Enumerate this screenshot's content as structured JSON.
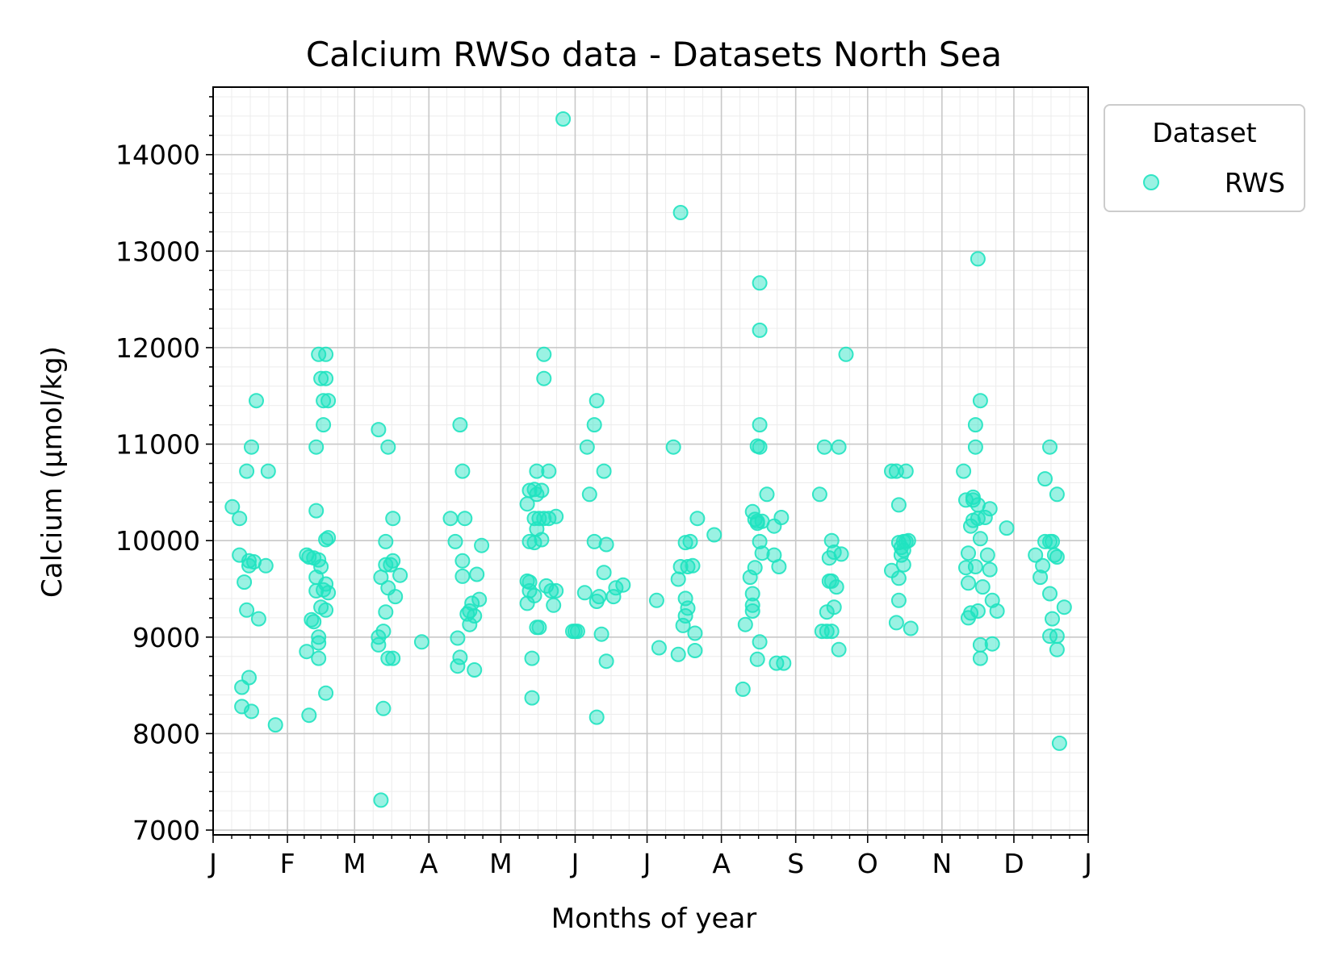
{
  "chart_data": {
    "type": "scatter",
    "title": "Calcium RWSo data - Datasets North Sea",
    "xlabel": "Months of year",
    "ylabel": "Calcium (µmol/kg)",
    "xlim": [
      1,
      366
    ],
    "ylim": [
      6950,
      14700
    ],
    "month_ticks": {
      "labels": [
        "J",
        "F",
        "M",
        "A",
        "M",
        "J",
        "J",
        "A",
        "S",
        "O",
        "N",
        "D",
        "J"
      ],
      "days": [
        1,
        32,
        60,
        91,
        121,
        152,
        182,
        213,
        244,
        274,
        305,
        335,
        366
      ]
    },
    "y_ticks": [
      7000,
      8000,
      9000,
      10000,
      11000,
      12000,
      13000,
      14000
    ],
    "grid": true,
    "legend": {
      "title": "Dataset",
      "entries": [
        "RWS"
      ],
      "placement": "outside-top-right"
    },
    "marker_color": "#20E3C0",
    "series": [
      {
        "name": "RWS",
        "points": [
          [
            9,
            10350
          ],
          [
            12,
            10230
          ],
          [
            12,
            9850
          ],
          [
            13,
            8480
          ],
          [
            13,
            8280
          ],
          [
            14,
            9570
          ],
          [
            15,
            10720
          ],
          [
            15,
            9280
          ],
          [
            16,
            9790
          ],
          [
            16,
            9740
          ],
          [
            16,
            8580
          ],
          [
            17,
            10970
          ],
          [
            17,
            8230
          ],
          [
            18,
            9780
          ],
          [
            19,
            11450
          ],
          [
            20,
            9190
          ],
          [
            23,
            9740
          ],
          [
            24,
            10720
          ],
          [
            27,
            8090
          ],
          [
            40,
            9850
          ],
          [
            40,
            8850
          ],
          [
            41,
            9830
          ],
          [
            41,
            8190
          ],
          [
            42,
            9180
          ],
          [
            43,
            9820
          ],
          [
            43,
            9160
          ],
          [
            44,
            10970
          ],
          [
            44,
            10310
          ],
          [
            44,
            9620
          ],
          [
            44,
            9480
          ],
          [
            45,
            11930
          ],
          [
            45,
            9800
          ],
          [
            45,
            9000
          ],
          [
            45,
            8780
          ],
          [
            45,
            8940
          ],
          [
            46,
            11680
          ],
          [
            46,
            9310
          ],
          [
            46,
            9730
          ],
          [
            47,
            11450
          ],
          [
            47,
            11200
          ],
          [
            47,
            9490
          ],
          [
            48,
            11680
          ],
          [
            48,
            11930
          ],
          [
            48,
            10010
          ],
          [
            48,
            9550
          ],
          [
            48,
            8420
          ],
          [
            48,
            9280
          ],
          [
            49,
            11450
          ],
          [
            49,
            10030
          ],
          [
            49,
            9460
          ],
          [
            70,
            11150
          ],
          [
            70,
            9000
          ],
          [
            70,
            8920
          ],
          [
            71,
            9620
          ],
          [
            71,
            7310
          ],
          [
            72,
            9060
          ],
          [
            72,
            8260
          ],
          [
            73,
            9990
          ],
          [
            73,
            9260
          ],
          [
            73,
            9750
          ],
          [
            74,
            10970
          ],
          [
            74,
            9510
          ],
          [
            74,
            8780
          ],
          [
            75,
            9750
          ],
          [
            76,
            8780
          ],
          [
            76,
            9790
          ],
          [
            76,
            10230
          ],
          [
            77,
            9420
          ],
          [
            79,
            9640
          ],
          [
            88,
            8950
          ],
          [
            100,
            10230
          ],
          [
            102,
            9990
          ],
          [
            103,
            8700
          ],
          [
            103,
            8990
          ],
          [
            104,
            11200
          ],
          [
            104,
            8790
          ],
          [
            105,
            10720
          ],
          [
            105,
            9630
          ],
          [
            105,
            9790
          ],
          [
            106,
            10230
          ],
          [
            107,
            9240
          ],
          [
            108,
            9130
          ],
          [
            108,
            9270
          ],
          [
            109,
            9350
          ],
          [
            110,
            8660
          ],
          [
            110,
            9220
          ],
          [
            111,
            9650
          ],
          [
            112,
            9390
          ],
          [
            113,
            9950
          ],
          [
            132,
            10380
          ],
          [
            132,
            9580
          ],
          [
            132,
            9350
          ],
          [
            133,
            10520
          ],
          [
            133,
            9570
          ],
          [
            133,
            9990
          ],
          [
            133,
            9480
          ],
          [
            134,
            8780
          ],
          [
            134,
            8370
          ],
          [
            135,
            10530
          ],
          [
            135,
            9980
          ],
          [
            135,
            9430
          ],
          [
            135,
            10230
          ],
          [
            136,
            10720
          ],
          [
            136,
            10480
          ],
          [
            136,
            9100
          ],
          [
            136,
            10120
          ],
          [
            137,
            10230
          ],
          [
            137,
            9100
          ],
          [
            138,
            10520
          ],
          [
            138,
            10010
          ],
          [
            139,
            11930
          ],
          [
            139,
            11680
          ],
          [
            139,
            10230
          ],
          [
            140,
            9530
          ],
          [
            141,
            10720
          ],
          [
            141,
            10230
          ],
          [
            142,
            9480
          ],
          [
            143,
            9330
          ],
          [
            144,
            10250
          ],
          [
            144,
            9480
          ],
          [
            147,
            14370
          ],
          [
            151,
            9060
          ],
          [
            152,
            9060
          ],
          [
            153,
            9060
          ],
          [
            156,
            9460
          ],
          [
            157,
            10970
          ],
          [
            158,
            10480
          ],
          [
            160,
            9990
          ],
          [
            160,
            11200
          ],
          [
            161,
            11450
          ],
          [
            161,
            9370
          ],
          [
            161,
            8170
          ],
          [
            162,
            9420
          ],
          [
            163,
            9030
          ],
          [
            164,
            9670
          ],
          [
            164,
            10720
          ],
          [
            165,
            9960
          ],
          [
            165,
            8750
          ],
          [
            168,
            9420
          ],
          [
            169,
            9510
          ],
          [
            172,
            9540
          ],
          [
            186,
            9380
          ],
          [
            187,
            8890
          ],
          [
            193,
            10970
          ],
          [
            195,
            8820
          ],
          [
            195,
            9600
          ],
          [
            196,
            13400
          ],
          [
            196,
            9730
          ],
          [
            197,
            9120
          ],
          [
            198,
            9400
          ],
          [
            198,
            9980
          ],
          [
            198,
            9220
          ],
          [
            199,
            9300
          ],
          [
            199,
            9730
          ],
          [
            200,
            9990
          ],
          [
            201,
            9740
          ],
          [
            202,
            8860
          ],
          [
            202,
            9040
          ],
          [
            203,
            10230
          ],
          [
            210,
            10060
          ],
          [
            222,
            8460
          ],
          [
            223,
            9130
          ],
          [
            225,
            9620
          ],
          [
            226,
            10300
          ],
          [
            226,
            9450
          ],
          [
            226,
            9330
          ],
          [
            226,
            9270
          ],
          [
            227,
            10220
          ],
          [
            227,
            9720
          ],
          [
            228,
            10980
          ],
          [
            228,
            10200
          ],
          [
            228,
            10180
          ],
          [
            228,
            8770
          ],
          [
            229,
            11200
          ],
          [
            229,
            10970
          ],
          [
            229,
            9990
          ],
          [
            229,
            8950
          ],
          [
            229,
            12670
          ],
          [
            229,
            12180
          ],
          [
            230,
            10200
          ],
          [
            230,
            9870
          ],
          [
            232,
            10480
          ],
          [
            235,
            9850
          ],
          [
            235,
            10150
          ],
          [
            236,
            8730
          ],
          [
            237,
            9730
          ],
          [
            238,
            10240
          ],
          [
            239,
            8730
          ],
          [
            254,
            10480
          ],
          [
            255,
            9060
          ],
          [
            256,
            10970
          ],
          [
            257,
            9260
          ],
          [
            257,
            9060
          ],
          [
            258,
            9820
          ],
          [
            258,
            9580
          ],
          [
            259,
            9580
          ],
          [
            259,
            10000
          ],
          [
            259,
            9060
          ],
          [
            260,
            9310
          ],
          [
            260,
            9880
          ],
          [
            261,
            9520
          ],
          [
            262,
            10970
          ],
          [
            262,
            8870
          ],
          [
            263,
            9860
          ],
          [
            265,
            11930
          ],
          [
            284,
            10720
          ],
          [
            284,
            9690
          ],
          [
            286,
            10720
          ],
          [
            286,
            9150
          ],
          [
            287,
            9610
          ],
          [
            287,
            9380
          ],
          [
            287,
            9980
          ],
          [
            287,
            10370
          ],
          [
            288,
            9930
          ],
          [
            288,
            9850
          ],
          [
            289,
            9900
          ],
          [
            289,
            9990
          ],
          [
            289,
            9750
          ],
          [
            290,
            10720
          ],
          [
            290,
            9990
          ],
          [
            291,
            10000
          ],
          [
            292,
            9090
          ],
          [
            314,
            10720
          ],
          [
            315,
            9720
          ],
          [
            315,
            10420
          ],
          [
            316,
            9200
          ],
          [
            316,
            9560
          ],
          [
            316,
            9870
          ],
          [
            317,
            9250
          ],
          [
            317,
            10150
          ],
          [
            318,
            10450
          ],
          [
            318,
            10210
          ],
          [
            318,
            10420
          ],
          [
            319,
            9730
          ],
          [
            319,
            10970
          ],
          [
            319,
            11200
          ],
          [
            320,
            10370
          ],
          [
            320,
            9270
          ],
          [
            320,
            12920
          ],
          [
            320,
            10230
          ],
          [
            321,
            11450
          ],
          [
            321,
            8920
          ],
          [
            321,
            10020
          ],
          [
            321,
            8780
          ],
          [
            322,
            9520
          ],
          [
            323,
            10240
          ],
          [
            324,
            9850
          ],
          [
            325,
            9700
          ],
          [
            325,
            10330
          ],
          [
            326,
            8930
          ],
          [
            326,
            9380
          ],
          [
            328,
            9270
          ],
          [
            332,
            10130
          ],
          [
            344,
            9850
          ],
          [
            346,
            9620
          ],
          [
            347,
            9740
          ],
          [
            348,
            10640
          ],
          [
            348,
            9990
          ],
          [
            350,
            10970
          ],
          [
            350,
            9450
          ],
          [
            350,
            9990
          ],
          [
            350,
            9010
          ],
          [
            351,
            9990
          ],
          [
            351,
            9190
          ],
          [
            352,
            9850
          ],
          [
            353,
            10480
          ],
          [
            353,
            9830
          ],
          [
            353,
            9010
          ],
          [
            353,
            8870
          ],
          [
            354,
            7900
          ],
          [
            356,
            9310
          ]
        ]
      }
    ]
  }
}
